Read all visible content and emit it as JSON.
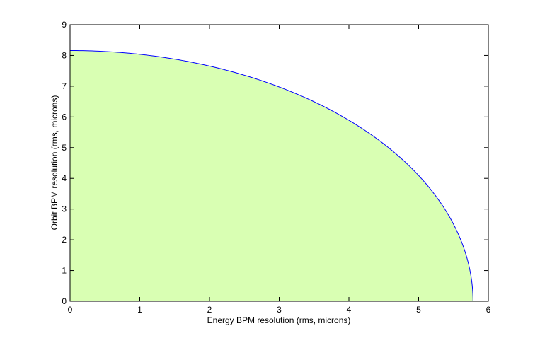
{
  "chart_data": {
    "type": "area",
    "title": "",
    "xlabel": "Energy BPM resolution (rms, microns)",
    "ylabel": "Orbit BPM resolution (rms, microns)",
    "xlim": [
      0,
      6
    ],
    "ylim": [
      0,
      9
    ],
    "xticks": [
      0,
      1,
      2,
      3,
      4,
      5,
      6
    ],
    "yticks": [
      0,
      1,
      2,
      3,
      4,
      5,
      6,
      7,
      8,
      9
    ],
    "grid": false,
    "legend": "none",
    "boundary": {
      "shape": "quarter-ellipse",
      "x_intercept": 5.78,
      "y_intercept": 8.16
    },
    "series": [
      {
        "x": [
          0.0,
          0.5,
          1.0,
          1.5,
          2.0,
          2.5,
          3.0,
          3.5,
          4.0,
          4.5,
          5.0,
          5.5,
          5.78
        ],
        "y": [
          8.16,
          8.13,
          8.04,
          7.88,
          7.66,
          7.36,
          6.97,
          6.49,
          5.89,
          5.12,
          4.1,
          2.5,
          0.0
        ]
      }
    ],
    "colors": {
      "fill": "#d9ffb3",
      "line": "#0000ff",
      "axes": "#000000"
    }
  }
}
